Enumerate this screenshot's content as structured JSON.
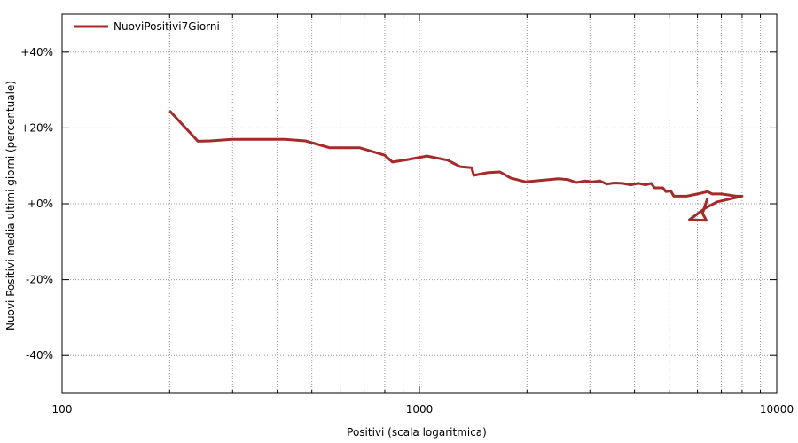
{
  "chart_data": {
    "type": "line",
    "xlabel": "Positivi (scala logaritmica)",
    "ylabel": "Nuovi Positivi media ultimi giorni (percentuale)",
    "x_scale": "log",
    "xlim": [
      100,
      10000
    ],
    "ylim": [
      -50,
      50
    ],
    "x_ticks": [
      {
        "value": 100,
        "label": "100"
      },
      {
        "value": 1000,
        "label": "1000"
      },
      {
        "value": 10000,
        "label": "10000"
      }
    ],
    "y_ticks": [
      {
        "value": 40,
        "label": "+40%"
      },
      {
        "value": 20,
        "label": "+20%"
      },
      {
        "value": 0,
        "label": "+0%"
      },
      {
        "value": -20,
        "label": "-20%"
      },
      {
        "value": -40,
        "label": "-40%"
      }
    ],
    "grid": true,
    "legend": "top-left",
    "series": [
      {
        "name": "NuoviPositivi7Giorni",
        "color": "#a52a2a",
        "points": [
          [
            200,
            24.5
          ],
          [
            240,
            16.5
          ],
          [
            260,
            16.6
          ],
          [
            300,
            17.0
          ],
          [
            350,
            17.0
          ],
          [
            420,
            17.0
          ],
          [
            480,
            16.6
          ],
          [
            560,
            14.8
          ],
          [
            680,
            14.8
          ],
          [
            800,
            12.8
          ],
          [
            840,
            11.0
          ],
          [
            920,
            11.6
          ],
          [
            1050,
            12.6
          ],
          [
            1200,
            11.5
          ],
          [
            1300,
            9.8
          ],
          [
            1400,
            9.5
          ],
          [
            1420,
            7.5
          ],
          [
            1550,
            8.2
          ],
          [
            1680,
            8.4
          ],
          [
            1800,
            6.8
          ],
          [
            1980,
            5.8
          ],
          [
            2200,
            6.2
          ],
          [
            2450,
            6.6
          ],
          [
            2600,
            6.4
          ],
          [
            2750,
            5.6
          ],
          [
            2900,
            6.0
          ],
          [
            3050,
            5.8
          ],
          [
            3200,
            6.0
          ],
          [
            3350,
            5.2
          ],
          [
            3500,
            5.5
          ],
          [
            3700,
            5.4
          ],
          [
            3900,
            5.0
          ],
          [
            4100,
            5.4
          ],
          [
            4300,
            5.0
          ],
          [
            4450,
            5.4
          ],
          [
            4550,
            4.2
          ],
          [
            4800,
            4.2
          ],
          [
            4900,
            3.2
          ],
          [
            5050,
            3.4
          ],
          [
            5150,
            2.0
          ],
          [
            5600,
            2.0
          ],
          [
            6000,
            2.6
          ],
          [
            6400,
            3.2
          ],
          [
            6600,
            2.6
          ],
          [
            7000,
            2.6
          ],
          [
            7700,
            2.0
          ],
          [
            8000,
            2.0
          ],
          [
            6800,
            0.5
          ],
          [
            6300,
            -1.2
          ],
          [
            5700,
            -4.2
          ],
          [
            6350,
            -4.4
          ],
          [
            6200,
            -2.5
          ],
          [
            6300,
            -0.5
          ],
          [
            6400,
            1.4
          ]
        ]
      }
    ]
  }
}
